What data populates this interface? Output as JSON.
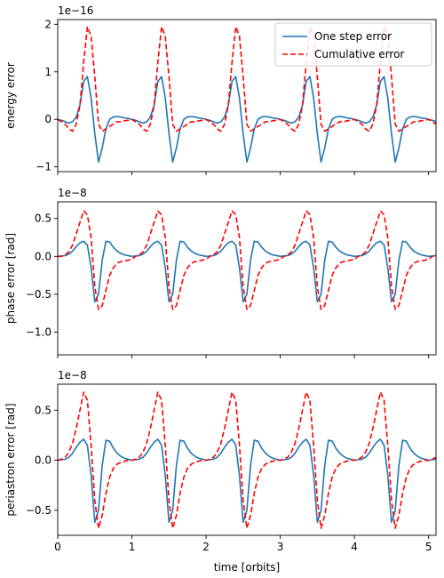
{
  "chart_data": {
    "type": "line",
    "shared_x": {
      "label": "time [orbits]",
      "lim": [
        0,
        5.1
      ],
      "ticks": [
        0,
        1,
        2,
        3,
        4,
        5
      ],
      "tick_labels": [
        "0",
        "1",
        "2",
        "3",
        "4",
        "5"
      ]
    },
    "panels": [
      {
        "ylabel": "energy error",
        "offset_text": "1e−16",
        "ylim": [
          -1.1,
          2.1
        ],
        "yticks": [
          -1,
          0,
          1,
          2
        ],
        "ytick_labels": [
          "−1",
          "0",
          "1",
          "2"
        ],
        "legend": {
          "placement": "top-right",
          "entries": [
            "One step error",
            "Cumulative error"
          ]
        },
        "series": [
          {
            "name": "One step error",
            "color": "#1f77b4",
            "dash": "solid",
            "x": [
              0.0,
              0.05,
              0.1,
              0.15,
              0.2,
              0.25,
              0.3,
              0.35,
              0.4,
              0.45,
              0.5,
              0.55,
              0.6,
              0.65,
              0.7,
              0.75,
              0.8,
              0.85,
              0.9,
              0.95,
              1.0
            ],
            "y": [
              0.0,
              -0.02,
              -0.05,
              -0.08,
              -0.05,
              0.05,
              0.3,
              0.8,
              0.9,
              0.45,
              -0.3,
              -0.9,
              -0.6,
              -0.2,
              0.0,
              0.05,
              0.06,
              0.05,
              0.03,
              0.02,
              0.0
            ]
          },
          {
            "name": "Cumulative error",
            "color": "#ff0000",
            "dash": "dashed",
            "x": [
              0.0,
              0.05,
              0.1,
              0.15,
              0.2,
              0.25,
              0.3,
              0.35,
              0.4,
              0.45,
              0.5,
              0.55,
              0.6,
              0.65,
              0.7,
              0.75,
              0.8,
              0.85,
              0.9,
              0.95,
              1.0
            ],
            "y": [
              0.0,
              -0.05,
              -0.1,
              -0.2,
              -0.25,
              -0.1,
              0.3,
              1.2,
              1.95,
              1.75,
              0.9,
              -0.1,
              -0.25,
              -0.2,
              -0.15,
              -0.1,
              -0.05,
              -0.05,
              -0.03,
              -0.02,
              0.0
            ]
          }
        ]
      },
      {
        "ylabel": "phase error [rad]",
        "offset_text": "1e−8",
        "ylim": [
          -1.3,
          0.72
        ],
        "yticks": [
          -1.0,
          -0.5,
          0.0,
          0.5
        ],
        "ytick_labels": [
          "−1.0",
          "−0.5",
          "0.0",
          "0.5"
        ],
        "series": [
          {
            "name": "One step error",
            "color": "#1f77b4",
            "dash": "solid",
            "x": [
              0.0,
              0.05,
              0.1,
              0.15,
              0.2,
              0.25,
              0.3,
              0.35,
              0.4,
              0.45,
              0.5,
              0.55,
              0.6,
              0.65,
              0.7,
              0.75,
              0.8,
              0.85,
              0.9,
              0.95,
              1.0
            ],
            "y": [
              0.0,
              0.005,
              0.01,
              0.03,
              0.07,
              0.13,
              0.18,
              0.2,
              0.15,
              -0.15,
              -0.6,
              -0.5,
              -0.05,
              0.2,
              0.19,
              0.12,
              0.07,
              0.04,
              0.02,
              0.01,
              0.0
            ]
          },
          {
            "name": "Cumulative error",
            "color": "#ff0000",
            "dash": "dashed",
            "x": [
              0.0,
              0.05,
              0.1,
              0.15,
              0.2,
              0.25,
              0.3,
              0.35,
              0.4,
              0.45,
              0.5,
              0.55,
              0.6,
              0.65,
              0.7,
              0.75,
              0.8,
              0.85,
              0.9,
              0.95,
              1.0
            ],
            "y": [
              0.0,
              0.0,
              0.02,
              0.06,
              0.15,
              0.3,
              0.45,
              0.6,
              0.55,
              0.25,
              -0.4,
              -0.7,
              -0.65,
              -0.45,
              -0.25,
              -0.15,
              -0.09,
              -0.07,
              -0.06,
              -0.05,
              -0.04
            ]
          }
        ]
      },
      {
        "ylabel": "periastron error [rad]",
        "offset_text": "1e−8",
        "ylim": [
          -0.75,
          0.76
        ],
        "yticks": [
          -0.5,
          0.0,
          0.5
        ],
        "ytick_labels": [
          "−0.5",
          "0.0",
          "0.5"
        ],
        "series": [
          {
            "name": "One step error",
            "color": "#1f77b4",
            "dash": "solid",
            "x": [
              0.0,
              0.05,
              0.1,
              0.15,
              0.2,
              0.25,
              0.3,
              0.35,
              0.4,
              0.45,
              0.5,
              0.55,
              0.6,
              0.65,
              0.7,
              0.75,
              0.8,
              0.85,
              0.9,
              0.95,
              1.0
            ],
            "y": [
              0.0,
              0.005,
              0.01,
              0.03,
              0.07,
              0.13,
              0.18,
              0.21,
              0.15,
              -0.15,
              -0.62,
              -0.5,
              -0.05,
              0.2,
              0.19,
              0.12,
              0.07,
              0.04,
              0.02,
              0.01,
              0.0
            ]
          },
          {
            "name": "Cumulative error",
            "color": "#ff0000",
            "dash": "dashed",
            "x": [
              0.0,
              0.05,
              0.1,
              0.15,
              0.2,
              0.25,
              0.3,
              0.35,
              0.4,
              0.45,
              0.5,
              0.55,
              0.6,
              0.65,
              0.7,
              0.75,
              0.8,
              0.85,
              0.9,
              0.95,
              1.0
            ],
            "y": [
              0.0,
              0.01,
              0.03,
              0.08,
              0.17,
              0.32,
              0.5,
              0.68,
              0.6,
              0.15,
              -0.4,
              -0.68,
              -0.55,
              -0.33,
              -0.17,
              -0.08,
              -0.04,
              -0.02,
              -0.01,
              0.0,
              0.0
            ]
          }
        ]
      }
    ]
  }
}
